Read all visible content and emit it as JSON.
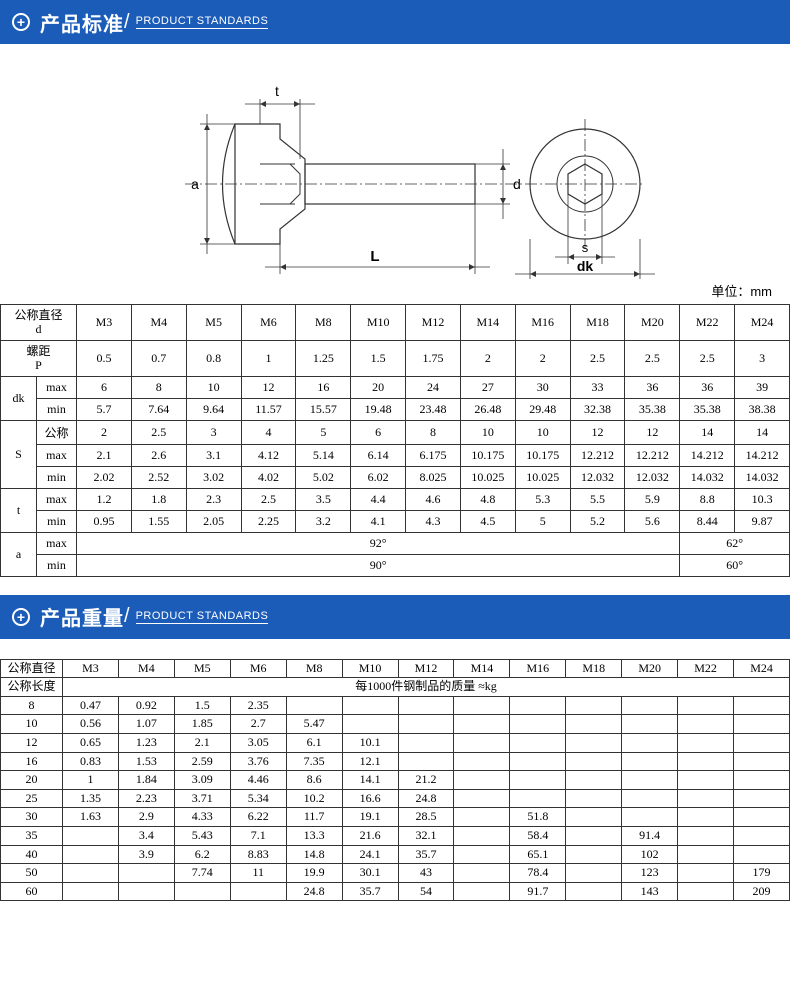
{
  "header1": {
    "title": "产品标准",
    "sub": "PRODUCT STANDARDS"
  },
  "header2": {
    "title": "产品重量",
    "sub": "PRODUCT STANDARDS"
  },
  "unit": "单位：mm",
  "colors": {
    "header_bg": "#1b5cb8",
    "header_text": "#ffffff",
    "border": "#333333"
  },
  "diagram_labels": {
    "t": "t",
    "a": "a",
    "d": "d",
    "L": "L",
    "s": "s",
    "dk": "dk"
  },
  "table1": {
    "row_groups": [
      {
        "label": "公称直径\nd",
        "rows": [
          [
            "M3",
            "M4",
            "M5",
            "M6",
            "M8",
            "M10",
            "M12",
            "M14",
            "M16",
            "M18",
            "M20",
            "M22",
            "M24"
          ]
        ]
      },
      {
        "label": "螺距\nP",
        "rows": [
          [
            "0.5",
            "0.7",
            "0.8",
            "1",
            "1.25",
            "1.5",
            "1.75",
            "2",
            "2",
            "2.5",
            "2.5",
            "2.5",
            "3"
          ]
        ]
      },
      {
        "label": "dk",
        "subs": [
          "max",
          "min"
        ],
        "rows": [
          [
            "6",
            "8",
            "10",
            "12",
            "16",
            "20",
            "24",
            "27",
            "30",
            "33",
            "36",
            "36",
            "39"
          ],
          [
            "5.7",
            "7.64",
            "9.64",
            "11.57",
            "15.57",
            "19.48",
            "23.48",
            "26.48",
            "29.48",
            "32.38",
            "35.38",
            "35.38",
            "38.38"
          ]
        ]
      },
      {
        "label": "S",
        "subs": [
          "公称",
          "max",
          "min"
        ],
        "rows": [
          [
            "2",
            "2.5",
            "3",
            "4",
            "5",
            "6",
            "8",
            "10",
            "10",
            "12",
            "12",
            "14",
            "14"
          ],
          [
            "2.1",
            "2.6",
            "3.1",
            "4.12",
            "5.14",
            "6.14",
            "6.175",
            "10.175",
            "10.175",
            "12.212",
            "12.212",
            "14.212",
            "14.212"
          ],
          [
            "2.02",
            "2.52",
            "3.02",
            "4.02",
            "5.02",
            "6.02",
            "8.025",
            "10.025",
            "10.025",
            "12.032",
            "12.032",
            "14.032",
            "14.032"
          ]
        ]
      },
      {
        "label": "t",
        "subs": [
          "max",
          "min"
        ],
        "rows": [
          [
            "1.2",
            "1.8",
            "2.3",
            "2.5",
            "3.5",
            "4.4",
            "4.6",
            "4.8",
            "5.3",
            "5.5",
            "5.9",
            "8.8",
            "10.3"
          ],
          [
            "0.95",
            "1.55",
            "2.05",
            "2.25",
            "3.2",
            "4.1",
            "4.3",
            "4.5",
            "5",
            "5.2",
            "5.6",
            "8.44",
            "9.87"
          ]
        ]
      },
      {
        "label": "a",
        "subs": [
          "max",
          "min"
        ],
        "spans": [
          [
            {
              "text": "92°",
              "span": 11
            },
            {
              "text": "62°",
              "span": 2
            }
          ],
          [
            {
              "text": "90°",
              "span": 11
            },
            {
              "text": "60°",
              "span": 2
            }
          ]
        ]
      }
    ]
  },
  "table2": {
    "header1": "公称直径",
    "cols": [
      "M3",
      "M4",
      "M5",
      "M6",
      "M8",
      "M10",
      "M12",
      "M14",
      "M16",
      "M18",
      "M20",
      "M22",
      "M24"
    ],
    "header2": "公称长度",
    "mass_label": "每1000件钢制品的质量 ≈kg",
    "rows": [
      {
        "len": "8",
        "vals": [
          "0.47",
          "0.92",
          "1.5",
          "2.35",
          "",
          "",
          "",
          "",
          "",
          "",
          "",
          "",
          ""
        ]
      },
      {
        "len": "10",
        "vals": [
          "0.56",
          "1.07",
          "1.85",
          "2.7",
          "5.47",
          "",
          "",
          "",
          "",
          "",
          "",
          "",
          ""
        ]
      },
      {
        "len": "12",
        "vals": [
          "0.65",
          "1.23",
          "2.1",
          "3.05",
          "6.1",
          "10.1",
          "",
          "",
          "",
          "",
          "",
          "",
          ""
        ]
      },
      {
        "len": "16",
        "vals": [
          "0.83",
          "1.53",
          "2.59",
          "3.76",
          "7.35",
          "12.1",
          "",
          "",
          "",
          "",
          "",
          "",
          ""
        ]
      },
      {
        "len": "20",
        "vals": [
          "1",
          "1.84",
          "3.09",
          "4.46",
          "8.6",
          "14.1",
          "21.2",
          "",
          "",
          "",
          "",
          "",
          ""
        ]
      },
      {
        "len": "25",
        "vals": [
          "1.35",
          "2.23",
          "3.71",
          "5.34",
          "10.2",
          "16.6",
          "24.8",
          "",
          "",
          "",
          "",
          "",
          ""
        ]
      },
      {
        "len": "30",
        "vals": [
          "1.63",
          "2.9",
          "4.33",
          "6.22",
          "11.7",
          "19.1",
          "28.5",
          "",
          "51.8",
          "",
          "",
          "",
          ""
        ]
      },
      {
        "len": "35",
        "vals": [
          "",
          "3.4",
          "5.43",
          "7.1",
          "13.3",
          "21.6",
          "32.1",
          "",
          "58.4",
          "",
          "91.4",
          "",
          ""
        ]
      },
      {
        "len": "40",
        "vals": [
          "",
          "3.9",
          "6.2",
          "8.83",
          "14.8",
          "24.1",
          "35.7",
          "",
          "65.1",
          "",
          "102",
          "",
          ""
        ]
      },
      {
        "len": "50",
        "vals": [
          "",
          "",
          "7.74",
          "11",
          "19.9",
          "30.1",
          "43",
          "",
          "78.4",
          "",
          "123",
          "",
          "179"
        ]
      },
      {
        "len": "60",
        "vals": [
          "",
          "",
          "",
          "",
          "24.8",
          "35.7",
          "54",
          "",
          "91.7",
          "",
          "143",
          "",
          "209"
        ]
      }
    ]
  }
}
